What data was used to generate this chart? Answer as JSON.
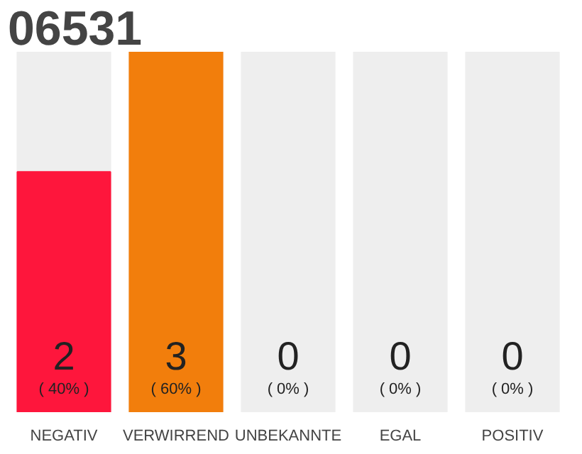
{
  "chart_data": {
    "type": "bar",
    "title": "06531",
    "categories": [
      "NEGATIV",
      "VERWIRREND",
      "UNBEKANNTE",
      "EGAL",
      "POSITIV"
    ],
    "values": [
      2,
      3,
      0,
      0,
      0
    ],
    "colors": [
      "#fe163c",
      "#f27e0c",
      "#eeeeee",
      "#eeeeee",
      "#eeeeee"
    ],
    "value_labels": [
      "2\n( 40% )",
      "3\n( 60% )",
      "0\n( 0% )",
      "0\n( 0% )",
      "0\n( 0% )"
    ]
  }
}
